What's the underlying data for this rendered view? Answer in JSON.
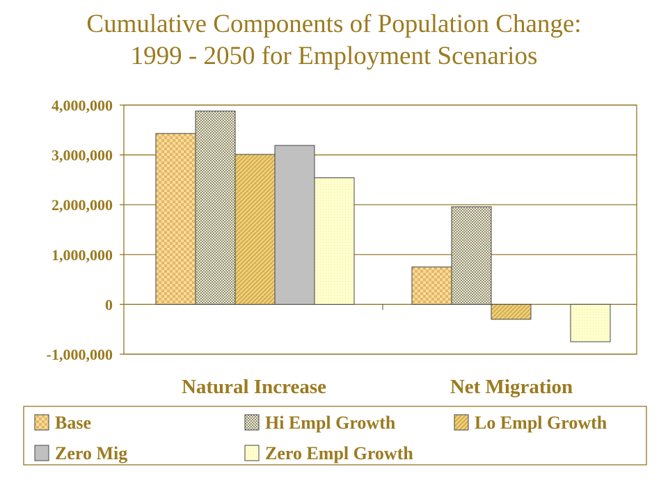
{
  "chart_data": {
    "type": "bar",
    "title": "Cumulative Components of Population Change: 1999 - 2050 for Employment Scenarios",
    "title_lines": [
      "Cumulative Components of Population Change:",
      "1999 - 2050 for Employment Scenarios"
    ],
    "categories": [
      "Natural Increase",
      "Net Migration"
    ],
    "series": [
      {
        "name": "Base",
        "values": [
          3430000,
          750000
        ]
      },
      {
        "name": "Hi Empl Growth",
        "values": [
          3880000,
          1960000
        ]
      },
      {
        "name": "Lo Empl Growth",
        "values": [
          3010000,
          -300000
        ]
      },
      {
        "name": "Zero Mig",
        "values": [
          3190000,
          0
        ]
      },
      {
        "name": "Zero Empl Growth",
        "values": [
          2540000,
          -750000
        ]
      }
    ],
    "ylim": [
      -1000000,
      4000000
    ],
    "yticks": [
      4000000,
      3000000,
      2000000,
      1000000,
      0,
      -1000000
    ],
    "ytick_labels": [
      "4,000,000",
      "3,000,000",
      "2,000,000",
      "1,000,000",
      "0",
      "-1,000,000"
    ],
    "grid": true,
    "legend_position": "bottom",
    "colors": {
      "text": "#9b7b20",
      "axis": "#8a6a10",
      "zero_mig": "#c0c0c0",
      "zero_empl": "#ffffcc",
      "pattern_dot": "#e6c46a",
      "pattern_bg": "#f4e6b4",
      "checker": "#b8b8a0"
    }
  }
}
